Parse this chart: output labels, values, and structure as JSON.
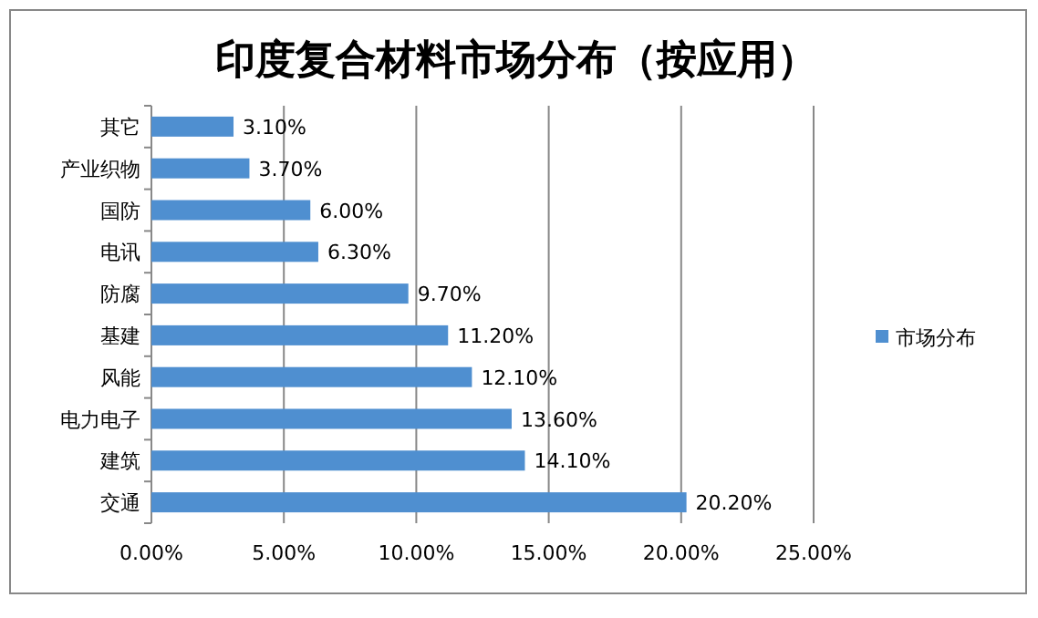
{
  "chart_data": {
    "type": "bar",
    "orientation": "horizontal",
    "title": "印度复合材料市场分布（按应用）",
    "categories": [
      "其它",
      "产业织物",
      "国防",
      "电讯",
      "防腐",
      "基建",
      "风能",
      "电力电子",
      "建筑",
      "交通"
    ],
    "series": [
      {
        "name": "市场分布",
        "color": "#4f8fd0",
        "values": [
          3.1,
          3.7,
          6.0,
          6.3,
          9.7,
          11.2,
          12.1,
          13.6,
          14.1,
          20.2
        ],
        "value_labels": [
          "3.10%",
          "3.70%",
          "6.00%",
          "6.30%",
          "9.70%",
          "11.20%",
          "12.10%",
          "13.60%",
          "14.10%",
          "20.20%"
        ]
      }
    ],
    "xlim": [
      0,
      25
    ],
    "xticks": [
      {
        "value": 0,
        "label": "0.00%"
      },
      {
        "value": 5,
        "label": "5.00%"
      },
      {
        "value": 10,
        "label": "10.00%"
      },
      {
        "value": 15,
        "label": "15.00%"
      },
      {
        "value": 20,
        "label": "20.00%"
      },
      {
        "value": 25,
        "label": "25.00%"
      }
    ],
    "grid": "x",
    "legend": "right"
  }
}
